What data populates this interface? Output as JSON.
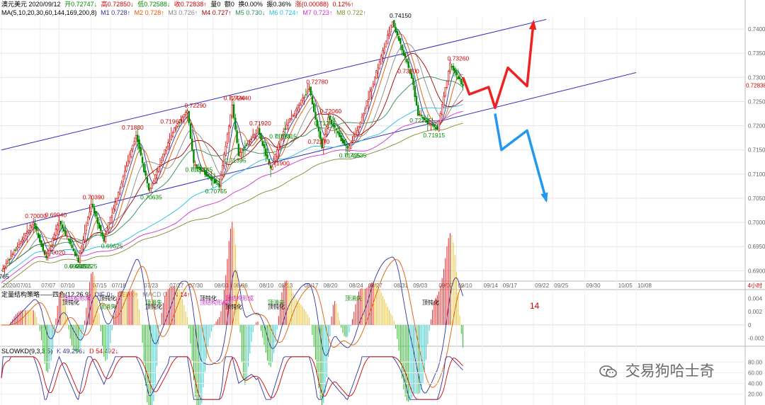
{
  "header": {
    "symbol_date": "澳元美元 2020/09/12",
    "items": [
      {
        "text": "开0.72747↓",
        "color": "#008800"
      },
      {
        "text": "高0.72850↓",
        "color": "#d00000"
      },
      {
        "text": "低0.72588↓",
        "color": "#008800"
      },
      {
        "text": "收0.72838↑",
        "color": "#d00000"
      },
      {
        "text": "量0",
        "color": "#000000"
      },
      {
        "text": "额0",
        "color": "#000000"
      },
      {
        "text": "换0.00%",
        "color": "#000000"
      },
      {
        "text": "振0.36%",
        "color": "#000000"
      },
      {
        "text": "涨(0.00088)",
        "color": "#d00000"
      },
      {
        "text": "0.12%↑",
        "color": "#d00000"
      }
    ]
  },
  "ma_legend": {
    "label": "MA(5,10,20,30,60,144,169,200,8)",
    "items": [
      {
        "text": "M1 0.728↑",
        "color": "#333399"
      },
      {
        "text": "M2 0.728↑",
        "color": "#e05a00"
      },
      {
        "text": "M3 0.726↑",
        "color": "#888888"
      },
      {
        "text": "M4 0.727↑",
        "color": "#a00000"
      },
      {
        "text": "M5 0.730↓",
        "color": "#2e8b57"
      },
      {
        "text": "M6 0.724↑",
        "color": "#20c0e0"
      },
      {
        "text": "M7 0.723↑",
        "color": "#cc33cc"
      },
      {
        "text": "M8 0.722↑",
        "color": "#888833"
      }
    ]
  },
  "macd_legend": {
    "label": "定量结构策略——四色(12,26,9)",
    "items": [
      {
        "text": "DIF 0↑",
        "color": "#333399"
      },
      {
        "text": "DEA 0↑",
        "color": "#e05a00"
      },
      {
        "text": "MACD 0↓",
        "color": "#888888"
      },
      {
        "text": "N 14↑",
        "color": "#d00000"
      }
    ]
  },
  "kd_legend": {
    "label": "SLOWKD(9,3,3,5)",
    "items": [
      {
        "text": "K 49.296↓",
        "color": "#333399"
      },
      {
        "text": "D 54.492↓",
        "color": "#d00000"
      }
    ]
  },
  "price_axis": [
    "0.7400",
    "0.7350",
    "0.7300",
    "0.7250",
    "0.7200",
    "0.7150",
    "0.7100",
    "0.7050",
    "0.7000",
    "0.6950",
    "0.6900"
  ],
  "current_price": "0.72838",
  "macd_axis": [
    "0.004",
    "0.002",
    "0",
    "-0.002"
  ],
  "kd_axis": [
    "80.00",
    "60.00",
    "40.00",
    "20.00"
  ],
  "date_axis": [
    "2020/07/01",
    "07/07",
    "07/10",
    "07/15",
    "07/18",
    "07/23",
    "07/27",
    "07/30",
    "08/03",
    "08/06",
    "08/10",
    "08/13",
    "08/17",
    "08/20",
    "08/24",
    "08/27",
    "08/31",
    "09/03",
    "09/07",
    "09/10",
    "09/14",
    "09/17",
    "09/22",
    "09/25",
    "09/30",
    "10/05",
    "10/08"
  ],
  "timeframe": "4小时",
  "macd_count": "14",
  "watermark": "交易狗哈士奇",
  "chart_data": {
    "type": "candlestick",
    "title": "澳元美元",
    "ylim": [
      0.688,
      0.7425
    ],
    "price_labels": [
      {
        "value": "0.68765",
        "color": "#000000"
      },
      {
        "value": "0.70000",
        "color": "#d00000"
      },
      {
        "value": "0.70020",
        "color": "#d00000"
      },
      {
        "value": "0.69940",
        "color": "#d00000"
      },
      {
        "value": "0.69205",
        "color": "#008800"
      },
      {
        "value": "0.69225",
        "color": "#008800"
      },
      {
        "value": "0.69205",
        "color": "#008800"
      },
      {
        "value": "0.70390",
        "color": "#d00000"
      },
      {
        "value": "0.69625",
        "color": "#008800"
      },
      {
        "value": "0.71830",
        "color": "#d00000"
      },
      {
        "value": "0.70635",
        "color": "#008800"
      },
      {
        "value": "0.72290",
        "color": "#d00000"
      },
      {
        "value": "0.71960",
        "color": "#d00000"
      },
      {
        "value": "0.71210",
        "color": "#008800"
      },
      {
        "value": "0.71745",
        "color": "#008800"
      },
      {
        "value": "0.70755",
        "color": "#008800"
      },
      {
        "value": "0.72440",
        "color": "#d00000"
      },
      {
        "value": "0.72440",
        "color": "#d00000"
      },
      {
        "value": "0.71395",
        "color": "#008800"
      },
      {
        "value": "0.71920",
        "color": "#d00000"
      },
      {
        "value": "0.71900",
        "color": "#d00000"
      },
      {
        "value": "0.71085",
        "color": "#008800"
      },
      {
        "value": "0.71315",
        "color": "#008800"
      },
      {
        "value": "0.72780",
        "color": "#d00000"
      },
      {
        "value": "0.72170",
        "color": "#d00000"
      },
      {
        "value": "0.72060",
        "color": "#d00000"
      },
      {
        "value": "0.71535",
        "color": "#008800"
      },
      {
        "value": "0.71395",
        "color": "#008800"
      },
      {
        "value": "0.71495",
        "color": "#008800"
      },
      {
        "value": "0.74150",
        "color": "#000000"
      },
      {
        "value": "0.73000",
        "color": "#d00000"
      },
      {
        "value": "0.72225",
        "color": "#008800"
      },
      {
        "value": "0.73260",
        "color": "#d00000"
      },
      {
        "value": "0.71915",
        "color": "#008800"
      }
    ],
    "pivots": [
      {
        "date": "07/01",
        "value": 0.69
      },
      {
        "date": "07/06",
        "value": 0.7
      },
      {
        "date": "07/08",
        "value": 0.6925
      },
      {
        "date": "07/10",
        "value": 0.7002
      },
      {
        "date": "07/13",
        "value": 0.6921
      },
      {
        "date": "07/15",
        "value": 0.7039
      },
      {
        "date": "07/17",
        "value": 0.6963
      },
      {
        "date": "07/22",
        "value": 0.7183
      },
      {
        "date": "07/24",
        "value": 0.7064
      },
      {
        "date": "07/28",
        "value": 0.7196
      },
      {
        "date": "07/30",
        "value": 0.7229
      },
      {
        "date": "07/31",
        "value": 0.7121
      },
      {
        "date": "08/04",
        "value": 0.7076
      },
      {
        "date": "08/06",
        "value": 0.7244
      },
      {
        "date": "08/07",
        "value": 0.714
      },
      {
        "date": "08/10",
        "value": 0.7192
      },
      {
        "date": "08/12",
        "value": 0.7109
      },
      {
        "date": "08/14",
        "value": 0.719
      },
      {
        "date": "08/18",
        "value": 0.7278
      },
      {
        "date": "08/20",
        "value": 0.7154
      },
      {
        "date": "08/21",
        "value": 0.7217
      },
      {
        "date": "08/24",
        "value": 0.715
      },
      {
        "date": "08/26",
        "value": 0.7206
      },
      {
        "date": "08/31",
        "value": 0.7415
      },
      {
        "date": "09/03",
        "value": 0.73
      },
      {
        "date": "09/04",
        "value": 0.7223
      },
      {
        "date": "09/07",
        "value": 0.7192
      },
      {
        "date": "09/09",
        "value": 0.7326
      },
      {
        "date": "09/11",
        "value": 0.7284
      }
    ],
    "channel": {
      "upper": [
        {
          "date": "07/01",
          "value": 0.715
        },
        {
          "date": "09/24",
          "value": 0.742
        }
      ],
      "lower": [
        {
          "date": "07/01",
          "value": 0.6985
        },
        {
          "date": "10/08",
          "value": 0.731
        }
      ]
    },
    "projection_up": [
      {
        "date": "09/11",
        "value": 0.73
      },
      {
        "date": "09/12",
        "value": 0.7265
      },
      {
        "date": "09/15",
        "value": 0.728
      },
      {
        "date": "09/16",
        "value": 0.7237
      },
      {
        "date": "09/18",
        "value": 0.732
      },
      {
        "date": "09/21",
        "value": 0.7282
      },
      {
        "date": "09/22",
        "value": 0.7415
      }
    ],
    "projection_down": [
      {
        "date": "09/16",
        "value": 0.7225
      },
      {
        "date": "09/17",
        "value": 0.715
      },
      {
        "date": "09/21",
        "value": 0.719
      },
      {
        "date": "09/24",
        "value": 0.7045
      }
    ],
    "macd_annotations": [
      {
        "text": "顶结构形成",
        "color": "#cc33cc"
      },
      {
        "text": "顶钝化",
        "color": "#000000"
      },
      {
        "text": "顶消失",
        "color": "#008800"
      },
      {
        "text": "顶钝化",
        "color": "#000000"
      },
      {
        "text": "顶消失",
        "color": "#008800"
      },
      {
        "text": "顶钝化",
        "color": "#000000"
      },
      {
        "text": "顶钝化",
        "color": "#000000"
      },
      {
        "text": "顶结构形成",
        "color": "#cc33cc"
      },
      {
        "text": "顶钝化",
        "color": "#000000"
      },
      {
        "text": "顶结构形成",
        "color": "#cc33cc"
      },
      {
        "text": "顶消失",
        "color": "#008800"
      },
      {
        "text": "顶钝化",
        "color": "#000000"
      },
      {
        "text": "顶消失",
        "color": "#008800"
      },
      {
        "text": "顶钝化",
        "color": "#000000"
      }
    ]
  }
}
